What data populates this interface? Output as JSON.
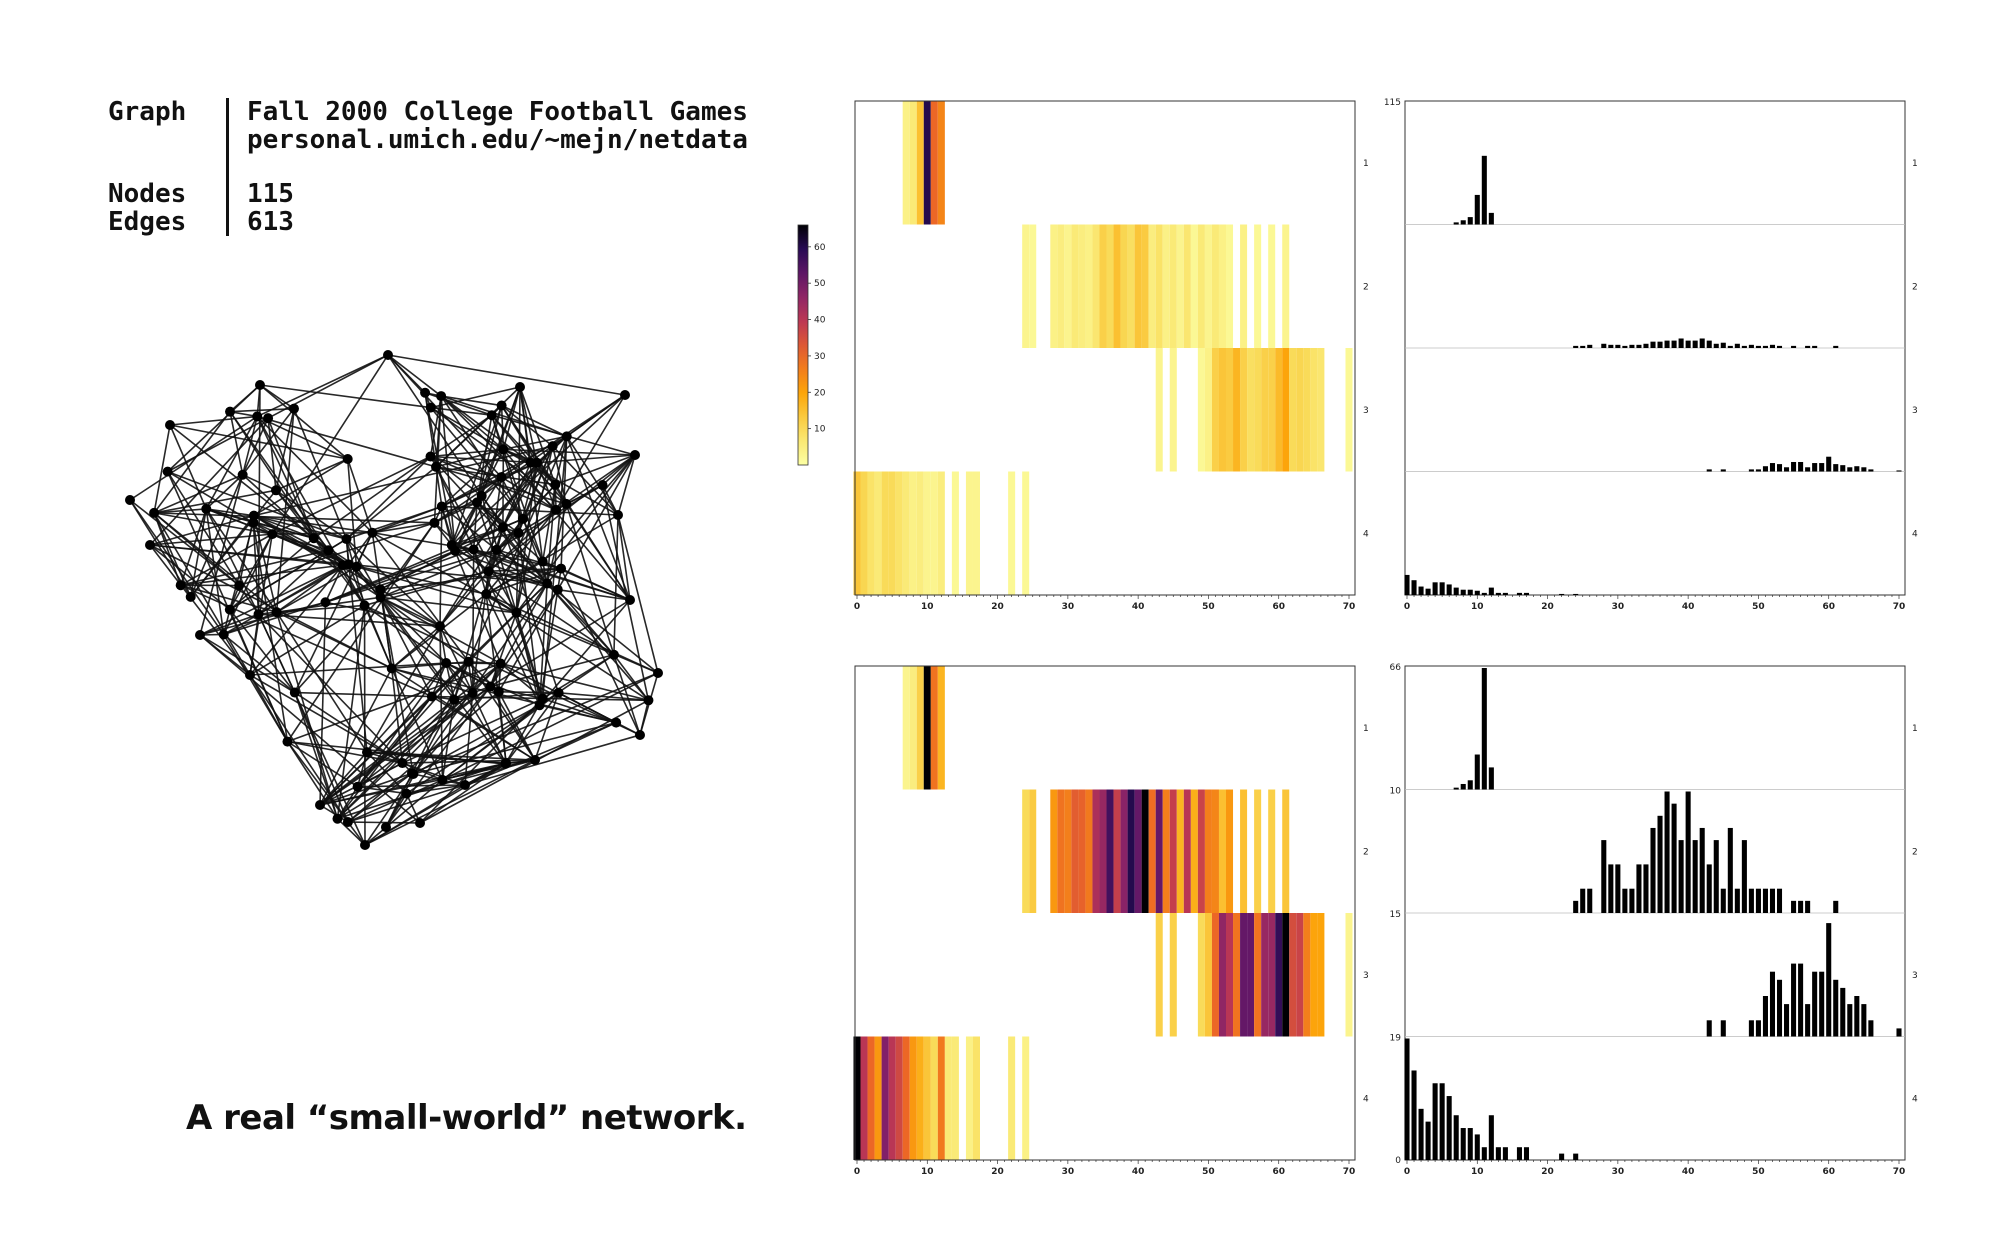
{
  "info": {
    "graph_key": "Graph",
    "graph_name": "Fall 2000 College Football Games",
    "graph_source": "personal.umich.edu/~mejn/netdata",
    "nodes_key": "Nodes",
    "nodes_value": "115",
    "edges_key": "Edges",
    "edges_value": "613"
  },
  "tagline": "A real “small-world” network.",
  "colors": {
    "background": "#ffffff",
    "edge": "#111111",
    "node": "#000000",
    "histogram_bar": "#000000",
    "colormap": "inferno (reversed)"
  },
  "colorbar_ticks": [
    "10",
    "20",
    "30",
    "40",
    "50",
    "60"
  ],
  "chart_data": [
    {
      "type": "heatmap",
      "panel": "top-left",
      "xlim": [
        0,
        70
      ],
      "x_ticks": [
        "0",
        "10",
        "20",
        "30",
        "40",
        "50",
        "60",
        "70"
      ],
      "row_labels": [
        "1",
        "2",
        "3",
        "4"
      ],
      "color_range": [
        0,
        66
      ],
      "rows": [
        {
          "label": "1",
          "x": [
            7,
            8,
            9,
            10,
            11,
            12
          ],
          "values": [
            4,
            6,
            15,
            60,
            30,
            25
          ]
        },
        {
          "label": "2",
          "x": [
            24,
            25,
            28,
            29,
            30,
            31,
            32,
            33,
            34,
            35,
            36,
            37,
            38,
            39,
            40,
            41,
            42,
            43,
            44,
            45,
            46,
            47,
            48,
            49,
            50,
            51,
            52,
            53,
            55,
            57,
            59,
            61
          ],
          "values": [
            3,
            2,
            4,
            5,
            3,
            6,
            5,
            4,
            7,
            12,
            10,
            15,
            11,
            9,
            14,
            13,
            5,
            8,
            4,
            6,
            3,
            7,
            2,
            6,
            3,
            6,
            4,
            2,
            4,
            2,
            2,
            3
          ]
        },
        {
          "label": "3",
          "x": [
            43,
            45,
            49,
            50,
            51,
            52,
            53,
            54,
            55,
            56,
            57,
            58,
            59,
            60,
            61,
            62,
            63,
            64,
            65,
            66,
            70
          ],
          "values": [
            3,
            3,
            2,
            4,
            12,
            14,
            13,
            17,
            12,
            9,
            10,
            12,
            12,
            16,
            20,
            10,
            11,
            10,
            8,
            7,
            2
          ]
        },
        {
          "label": "4",
          "x": [
            0,
            1,
            2,
            3,
            4,
            5,
            6,
            7,
            8,
            9,
            10,
            11,
            12,
            14,
            16,
            17,
            22,
            24
          ],
          "values": [
            14,
            11,
            8,
            6,
            10,
            10,
            8,
            6,
            4,
            5,
            3,
            3,
            5,
            2,
            3,
            3,
            2,
            2
          ]
        }
      ]
    },
    {
      "type": "bar",
      "panel": "top-right",
      "xlim": [
        0,
        70
      ],
      "y_top_label": "115",
      "x_ticks": [
        "0",
        "10",
        "20",
        "30",
        "40",
        "50",
        "60",
        "70"
      ],
      "row_labels": [
        "1",
        "2",
        "3",
        "4"
      ],
      "rows": [
        {
          "label": "1",
          "ymax": 115,
          "x": [
            7,
            8,
            9,
            10,
            11,
            12
          ],
          "values": [
            2,
            4,
            7,
            28,
            65,
            11
          ]
        },
        {
          "label": "2",
          "ymax": 115,
          "x": [
            24,
            25,
            26,
            28,
            29,
            30,
            31,
            32,
            33,
            34,
            35,
            36,
            37,
            38,
            39,
            40,
            41,
            42,
            43,
            44,
            45,
            46,
            47,
            48,
            49,
            50,
            51,
            52,
            53,
            55,
            57,
            58,
            61
          ],
          "values": [
            2,
            2,
            3,
            4,
            3,
            3,
            2,
            3,
            3,
            4,
            6,
            6,
            7,
            7,
            9,
            7,
            7,
            9,
            7,
            4,
            5,
            2,
            4,
            2,
            3,
            2,
            2,
            3,
            2,
            2,
            2,
            2,
            2
          ]
        },
        {
          "label": "3",
          "ymax": 115,
          "x": [
            43,
            45,
            49,
            50,
            51,
            52,
            53,
            54,
            55,
            56,
            57,
            58,
            59,
            60,
            61,
            62,
            63,
            64,
            65,
            66,
            70
          ],
          "values": [
            2,
            2,
            2,
            2,
            5,
            8,
            7,
            4,
            9,
            9,
            4,
            8,
            8,
            14,
            7,
            6,
            4,
            5,
            4,
            2,
            1
          ]
        },
        {
          "label": "4",
          "ymax": 115,
          "x": [
            0,
            1,
            2,
            3,
            4,
            5,
            6,
            7,
            8,
            9,
            10,
            11,
            12,
            13,
            14,
            16,
            17,
            22,
            24
          ],
          "values": [
            19,
            14,
            8,
            6,
            12,
            12,
            10,
            7,
            5,
            5,
            4,
            2,
            7,
            2,
            2,
            2,
            2,
            1,
            1
          ]
        }
      ]
    },
    {
      "type": "heatmap",
      "panel": "bottom-left",
      "xlim": [
        0,
        70
      ],
      "x_ticks": [
        "0",
        "10",
        "20",
        "30",
        "40",
        "50",
        "60",
        "70"
      ],
      "row_labels": [
        "1",
        "2",
        "3",
        "4"
      ],
      "color_range": [
        0,
        66
      ],
      "rows": [
        {
          "label": "1",
          "x": [
            7,
            8,
            9,
            10,
            11,
            12
          ],
          "values": [
            3,
            5,
            12,
            66,
            28,
            17
          ]
        },
        {
          "label": "2",
          "x": [
            24,
            25,
            28,
            29,
            30,
            31,
            32,
            33,
            34,
            35,
            36,
            37,
            38,
            39,
            40,
            41,
            42,
            43,
            44,
            45,
            46,
            47,
            48,
            49,
            50,
            51,
            52,
            53,
            55,
            57,
            59,
            61
          ],
          "values": [
            10,
            13,
            22,
            28,
            26,
            32,
            31,
            27,
            42,
            45,
            56,
            38,
            47,
            60,
            52,
            66,
            29,
            52,
            26,
            38,
            17,
            40,
            18,
            37,
            26,
            25,
            15,
            22,
            15,
            12,
            12,
            14
          ]
        },
        {
          "label": "3",
          "x": [
            43,
            45,
            49,
            50,
            51,
            52,
            53,
            54,
            55,
            56,
            57,
            58,
            59,
            60,
            61,
            62,
            63,
            64,
            65,
            66,
            70
          ],
          "values": [
            12,
            12,
            10,
            14,
            30,
            46,
            40,
            28,
            52,
            52,
            28,
            45,
            45,
            58,
            66,
            35,
            37,
            26,
            20,
            20,
            3
          ]
        },
        {
          "label": "4",
          "x": [
            0,
            1,
            2,
            3,
            4,
            5,
            6,
            7,
            8,
            9,
            10,
            11,
            12,
            13,
            14,
            16,
            17,
            22,
            24
          ],
          "values": [
            66,
            40,
            30,
            22,
            48,
            40,
            36,
            30,
            22,
            18,
            14,
            10,
            27,
            6,
            6,
            4,
            8,
            6,
            4
          ]
        }
      ]
    },
    {
      "type": "bar",
      "panel": "bottom-right",
      "xlim": [
        0,
        70
      ],
      "x_ticks": [
        "0",
        "10",
        "20",
        "30",
        "40",
        "50",
        "60",
        "70"
      ],
      "row_labels": [
        "1",
        "2",
        "3",
        "4"
      ],
      "rows": [
        {
          "label": "1",
          "axis_label": "66",
          "ymax": 66,
          "x": [
            7,
            8,
            9,
            10,
            11,
            12
          ],
          "values": [
            1,
            3,
            5,
            19,
            66,
            12
          ]
        },
        {
          "label": "2",
          "axis_label": "10",
          "ymax": 10,
          "x": [
            24,
            25,
            26,
            28,
            29,
            30,
            31,
            32,
            33,
            34,
            35,
            36,
            37,
            38,
            39,
            40,
            41,
            42,
            43,
            44,
            45,
            46,
            47,
            48,
            49,
            50,
            51,
            52,
            53,
            55,
            56,
            57,
            61
          ],
          "values": [
            1,
            2,
            2,
            6,
            4,
            4,
            2,
            2,
            4,
            4,
            7,
            8,
            10,
            9,
            6,
            10,
            6,
            7,
            4,
            6,
            2,
            7,
            2,
            6,
            2,
            2,
            2,
            2,
            2,
            1,
            1,
            1,
            1
          ]
        },
        {
          "label": "3",
          "axis_label": "15",
          "ymax": 15,
          "x": [
            43,
            45,
            49,
            50,
            51,
            52,
            53,
            54,
            55,
            56,
            57,
            58,
            59,
            60,
            61,
            62,
            63,
            64,
            65,
            66,
            70
          ],
          "values": [
            2,
            2,
            2,
            2,
            5,
            8,
            7,
            4,
            9,
            9,
            4,
            8,
            8,
            14,
            7,
            6,
            4,
            5,
            4,
            2,
            1
          ]
        },
        {
          "label": "4",
          "axis_label": "19",
          "bottom_label": "0",
          "ymax": 19,
          "x": [
            0,
            1,
            2,
            3,
            4,
            5,
            6,
            7,
            8,
            9,
            10,
            11,
            12,
            13,
            14,
            16,
            17,
            22,
            24
          ],
          "values": [
            19,
            14,
            8,
            6,
            12,
            12,
            10,
            7,
            5,
            5,
            4,
            2,
            7,
            2,
            2,
            2,
            2,
            1,
            1
          ]
        }
      ]
    }
  ]
}
